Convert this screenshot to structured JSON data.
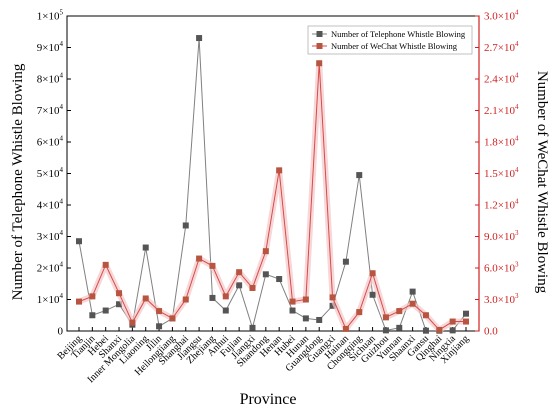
{
  "chart_data": {
    "type": "line",
    "xlabel": "Province",
    "ylabel_left": "Number of Telephone Whistle Blowing",
    "ylabel_right": "Number of WeChat Whistle Blowing",
    "categories": [
      "Beijing",
      "Tianjin",
      "Hebei",
      "Shanxi",
      "Inner Mongolia",
      "Liaoning",
      "Jilin",
      "Heilongjiang",
      "Shanghai",
      "Jiangsu",
      "Zhejiang",
      "Anhui",
      "Fujian",
      "Jiangxi",
      "Shandong",
      "Henan",
      "Hubei",
      "Hunan",
      "Guangdong",
      "Guangxi",
      "Hainan",
      "Chongqing",
      "Sichuan",
      "Guizhou",
      "Yunnan",
      "Shaanxi",
      "Gansu",
      "Qinghai",
      "Ningxia",
      "Xinjiang"
    ],
    "left_axis": {
      "ylim": [
        0,
        100000
      ],
      "ticks": [
        {
          "value": 0,
          "base": "0",
          "exp": ""
        },
        {
          "value": 10000,
          "base": "1×10",
          "exp": "4"
        },
        {
          "value": 20000,
          "base": "2×10",
          "exp": "4"
        },
        {
          "value": 30000,
          "base": "3×10",
          "exp": "4"
        },
        {
          "value": 40000,
          "base": "4×10",
          "exp": "4"
        },
        {
          "value": 50000,
          "base": "5×10",
          "exp": "4"
        },
        {
          "value": 60000,
          "base": "6×10",
          "exp": "4"
        },
        {
          "value": 70000,
          "base": "7×10",
          "exp": "4"
        },
        {
          "value": 80000,
          "base": "8×10",
          "exp": "4"
        },
        {
          "value": 90000,
          "base": "9×10",
          "exp": "4"
        },
        {
          "value": 100000,
          "base": "1×10",
          "exp": "5"
        }
      ]
    },
    "right_axis": {
      "ylim": [
        0,
        30000
      ],
      "ticks": [
        {
          "value": 0,
          "base": "0.0",
          "exp": ""
        },
        {
          "value": 3000,
          "base": "3.0×10",
          "exp": "3"
        },
        {
          "value": 6000,
          "base": "6.0×10",
          "exp": "3"
        },
        {
          "value": 9000,
          "base": "9.0×10",
          "exp": "3"
        },
        {
          "value": 12000,
          "base": "1.2×10",
          "exp": "4"
        },
        {
          "value": 15000,
          "base": "1.5×10",
          "exp": "4"
        },
        {
          "value": 18000,
          "base": "1.8×10",
          "exp": "4"
        },
        {
          "value": 21000,
          "base": "2.1×10",
          "exp": "4"
        },
        {
          "value": 24000,
          "base": "2.4×10",
          "exp": "4"
        },
        {
          "value": 27000,
          "base": "2.7×10",
          "exp": "4"
        },
        {
          "value": 30000,
          "base": "3.0×10",
          "exp": "4"
        }
      ]
    },
    "series": [
      {
        "name": "Number of Telephone Whistle Blowing",
        "axis": "left",
        "color": "#808080",
        "marker_color": "#555555",
        "values": [
          28500,
          5000,
          6500,
          8500,
          2000,
          26500,
          1500,
          4000,
          33500,
          93000,
          10500,
          6500,
          14500,
          1000,
          18000,
          16500,
          6500,
          4000,
          3500,
          8000,
          22000,
          49500,
          11500,
          200,
          1000,
          12500,
          100,
          100,
          200,
          5500
        ]
      },
      {
        "name": "Number of WeChat Whistle Blowing",
        "axis": "right",
        "color": "#d84a4a",
        "marker_color": "#b85540",
        "values": [
          2800,
          3300,
          6300,
          3600,
          800,
          3100,
          1900,
          1200,
          3000,
          6900,
          6200,
          3300,
          5600,
          4100,
          7600,
          15300,
          2800,
          3000,
          25500,
          3200,
          200,
          1800,
          5500,
          1300,
          1900,
          2600,
          1500,
          100,
          900,
          900
        ]
      }
    ],
    "legend": "top-right",
    "grid": false
  }
}
